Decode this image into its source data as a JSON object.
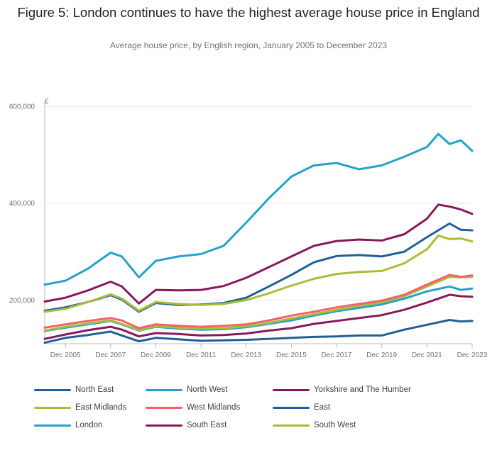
{
  "title": "Figure 5: London continues to have the highest average house price in England",
  "subtitle": "Average house price, by English region, January 2005 to December 2023",
  "chart_data": {
    "type": "line",
    "title": "Figure 5: London continues to have the highest average house price in England",
    "subtitle": "Average house price, by English region, January 2005 to December 2023",
    "y_unit": "£",
    "ylim": [
      110000,
      600000
    ],
    "y_ticks": [
      200000,
      400000,
      600000
    ],
    "y_tick_labels": [
      "200,000",
      "400,000",
      "600,000"
    ],
    "x_ticks": [
      "Dec 2005",
      "Dec 2007",
      "Dec 2009",
      "Dec 2011",
      "Dec 2013",
      "Dec 2015",
      "Dec 2017",
      "Dec 2019",
      "Dec 2021",
      "Dec 2023"
    ],
    "x_range": [
      "Jan 2005",
      "Dec 2023"
    ],
    "grid": "horizontal",
    "legend_position": "bottom",
    "series": [
      {
        "name": "North East",
        "color": "#206095",
        "points": [
          [
            "Jan 2005",
            112000
          ],
          [
            "Dec 2005",
            122000
          ],
          [
            "Dec 2006",
            128000
          ],
          [
            "Dec 2007",
            135000
          ],
          [
            "Jun 2008",
            127000
          ],
          [
            "Mar 2009",
            115000
          ],
          [
            "Dec 2009",
            122000
          ],
          [
            "Dec 2010",
            119000
          ],
          [
            "Dec 2011",
            116000
          ],
          [
            "Dec 2012",
            117000
          ],
          [
            "Dec 2013",
            118000
          ],
          [
            "Dec 2014",
            120000
          ],
          [
            "Dec 2015",
            122000
          ],
          [
            "Dec 2016",
            124000
          ],
          [
            "Dec 2017",
            125000
          ],
          [
            "Dec 2018",
            127000
          ],
          [
            "Dec 2019",
            127000
          ],
          [
            "Dec 2020",
            139000
          ],
          [
            "Dec 2021",
            149000
          ],
          [
            "Dec 2022",
            159000
          ],
          [
            "Jun 2023",
            156000
          ],
          [
            "Dec 2023",
            157000
          ]
        ]
      },
      {
        "name": "North West",
        "color": "#27a0cc",
        "points": [
          [
            "Jan 2005",
            136000
          ],
          [
            "Dec 2005",
            143000
          ],
          [
            "Dec 2006",
            150000
          ],
          [
            "Dec 2007",
            157000
          ],
          [
            "Jun 2008",
            150000
          ],
          [
            "Mar 2009",
            137000
          ],
          [
            "Dec 2009",
            145000
          ],
          [
            "Dec 2010",
            141000
          ],
          [
            "Dec 2011",
            139000
          ],
          [
            "Dec 2012",
            140000
          ],
          [
            "Dec 2013",
            144000
          ],
          [
            "Dec 2014",
            151000
          ],
          [
            "Dec 2015",
            158000
          ],
          [
            "Dec 2016",
            168000
          ],
          [
            "Dec 2017",
            177000
          ],
          [
            "Dec 2018",
            184000
          ],
          [
            "Dec 2019",
            191000
          ],
          [
            "Dec 2020",
            203000
          ],
          [
            "Dec 2021",
            218000
          ],
          [
            "Dec 2022",
            228000
          ],
          [
            "Jun 2023",
            221000
          ],
          [
            "Dec 2023",
            224000
          ]
        ]
      },
      {
        "name": "Yorkshire and The Humber",
        "color": "#871a5b",
        "points": [
          [
            "Jan 2005",
            120000
          ],
          [
            "Dec 2005",
            129000
          ],
          [
            "Dec 2006",
            138000
          ],
          [
            "Dec 2007",
            145000
          ],
          [
            "Jun 2008",
            139000
          ],
          [
            "Mar 2009",
            125000
          ],
          [
            "Dec 2009",
            132000
          ],
          [
            "Dec 2010",
            130000
          ],
          [
            "Dec 2011",
            127000
          ],
          [
            "Dec 2012",
            128000
          ],
          [
            "Dec 2013",
            131000
          ],
          [
            "Dec 2014",
            137000
          ],
          [
            "Dec 2015",
            142000
          ],
          [
            "Dec 2016",
            151000
          ],
          [
            "Dec 2017",
            157000
          ],
          [
            "Dec 2018",
            163000
          ],
          [
            "Dec 2019",
            169000
          ],
          [
            "Dec 2020",
            180000
          ],
          [
            "Dec 2021",
            195000
          ],
          [
            "Dec 2022",
            211000
          ],
          [
            "Jun 2023",
            208000
          ],
          [
            "Dec 2023",
            207000
          ]
        ]
      },
      {
        "name": "East Midlands",
        "color": "#a8bd3a",
        "points": [
          [
            "Jan 2005",
            137000
          ],
          [
            "Dec 2005",
            145000
          ],
          [
            "Dec 2006",
            152000
          ],
          [
            "Dec 2007",
            158000
          ],
          [
            "Jun 2008",
            151000
          ],
          [
            "Mar 2009",
            138000
          ],
          [
            "Dec 2009",
            146000
          ],
          [
            "Dec 2010",
            143000
          ],
          [
            "Dec 2011",
            141000
          ],
          [
            "Dec 2012",
            142000
          ],
          [
            "Dec 2013",
            146000
          ],
          [
            "Dec 2014",
            153000
          ],
          [
            "Dec 2015",
            162000
          ],
          [
            "Dec 2016",
            171000
          ],
          [
            "Dec 2017",
            180000
          ],
          [
            "Dec 2018",
            188000
          ],
          [
            "Dec 2019",
            195000
          ],
          [
            "Dec 2020",
            208000
          ],
          [
            "Dec 2021",
            228000
          ],
          [
            "Dec 2022",
            248000
          ],
          [
            "Jun 2023",
            247000
          ],
          [
            "Dec 2023",
            248000
          ]
        ]
      },
      {
        "name": "West Midlands",
        "color": "#f66068",
        "points": [
          [
            "Jan 2005",
            143000
          ],
          [
            "Dec 2005",
            150000
          ],
          [
            "Dec 2006",
            157000
          ],
          [
            "Dec 2007",
            163000
          ],
          [
            "Jun 2008",
            158000
          ],
          [
            "Mar 2009",
            142000
          ],
          [
            "Dec 2009",
            150000
          ],
          [
            "Dec 2010",
            147000
          ],
          [
            "Dec 2011",
            145000
          ],
          [
            "Dec 2012",
            147000
          ],
          [
            "Dec 2013",
            150000
          ],
          [
            "Dec 2014",
            158000
          ],
          [
            "Dec 2015",
            168000
          ],
          [
            "Dec 2016",
            176000
          ],
          [
            "Dec 2017",
            185000
          ],
          [
            "Dec 2018",
            192000
          ],
          [
            "Dec 2019",
            199000
          ],
          [
            "Dec 2020",
            211000
          ],
          [
            "Dec 2021",
            232000
          ],
          [
            "Dec 2022",
            252000
          ],
          [
            "Jun 2023",
            248000
          ],
          [
            "Dec 2023",
            251000
          ]
        ]
      },
      {
        "name": "East",
        "color": "#206095",
        "points": [
          [
            "Jan 2005",
            178000
          ],
          [
            "Dec 2005",
            185000
          ],
          [
            "Dec 2006",
            196000
          ],
          [
            "Dec 2007",
            210000
          ],
          [
            "Jun 2008",
            201000
          ],
          [
            "Mar 2009",
            176000
          ],
          [
            "Dec 2009",
            194000
          ],
          [
            "Dec 2010",
            190000
          ],
          [
            "Dec 2011",
            191000
          ],
          [
            "Dec 2012",
            194000
          ],
          [
            "Dec 2013",
            205000
          ],
          [
            "Dec 2014",
            228000
          ],
          [
            "Dec 2015",
            252000
          ],
          [
            "Dec 2016",
            278000
          ],
          [
            "Dec 2017",
            291000
          ],
          [
            "Dec 2018",
            293000
          ],
          [
            "Dec 2019",
            290000
          ],
          [
            "Dec 2020",
            300000
          ],
          [
            "Dec 2021",
            330000
          ],
          [
            "Dec 2022",
            358000
          ],
          [
            "Jun 2023",
            345000
          ],
          [
            "Dec 2023",
            344000
          ]
        ]
      },
      {
        "name": "London",
        "color": "#27a0cc",
        "points": [
          [
            "Jan 2005",
            232000
          ],
          [
            "Dec 2005",
            240000
          ],
          [
            "Dec 2006",
            265000
          ],
          [
            "Dec 2007",
            298000
          ],
          [
            "Jun 2008",
            290000
          ],
          [
            "Mar 2009",
            247000
          ],
          [
            "Dec 2009",
            281000
          ],
          [
            "Dec 2010",
            290000
          ],
          [
            "Dec 2011",
            295000
          ],
          [
            "Dec 2012",
            312000
          ],
          [
            "Dec 2013",
            360000
          ],
          [
            "Dec 2014",
            410000
          ],
          [
            "Dec 2015",
            455000
          ],
          [
            "Dec 2016",
            478000
          ],
          [
            "Dec 2017",
            483000
          ],
          [
            "Dec 2018",
            470000
          ],
          [
            "Dec 2019",
            478000
          ],
          [
            "Dec 2020",
            496000
          ],
          [
            "Dec 2021",
            516000
          ],
          [
            "Jun 2022",
            543000
          ],
          [
            "Dec 2022",
            522000
          ],
          [
            "Jun 2023",
            530000
          ],
          [
            "Dec 2023",
            508000
          ]
        ]
      },
      {
        "name": "South East",
        "color": "#871a5b",
        "points": [
          [
            "Jan 2005",
            197000
          ],
          [
            "Dec 2005",
            205000
          ],
          [
            "Dec 2006",
            220000
          ],
          [
            "Dec 2007",
            238000
          ],
          [
            "Jun 2008",
            228000
          ],
          [
            "Mar 2009",
            193000
          ],
          [
            "Dec 2009",
            221000
          ],
          [
            "Dec 2010",
            220000
          ],
          [
            "Dec 2011",
            221000
          ],
          [
            "Dec 2012",
            229000
          ],
          [
            "Dec 2013",
            246000
          ],
          [
            "Dec 2014",
            268000
          ],
          [
            "Dec 2015",
            290000
          ],
          [
            "Dec 2016",
            312000
          ],
          [
            "Dec 2017",
            322000
          ],
          [
            "Dec 2018",
            325000
          ],
          [
            "Dec 2019",
            323000
          ],
          [
            "Dec 2020",
            336000
          ],
          [
            "Dec 2021",
            368000
          ],
          [
            "Jun 2022",
            397000
          ],
          [
            "Dec 2022",
            393000
          ],
          [
            "Jun 2023",
            387000
          ],
          [
            "Dec 2023",
            378000
          ]
        ]
      },
      {
        "name": "South West",
        "color": "#a8bd3a",
        "points": [
          [
            "Jan 2005",
            176000
          ],
          [
            "Dec 2005",
            182000
          ],
          [
            "Dec 2006",
            196000
          ],
          [
            "Dec 2007",
            212000
          ],
          [
            "Jun 2008",
            203000
          ],
          [
            "Mar 2009",
            178000
          ],
          [
            "Dec 2009",
            196000
          ],
          [
            "Dec 2010",
            192000
          ],
          [
            "Dec 2011",
            190000
          ],
          [
            "Dec 2012",
            192000
          ],
          [
            "Dec 2013",
            200000
          ],
          [
            "Dec 2014",
            214000
          ],
          [
            "Dec 2015",
            230000
          ],
          [
            "Dec 2016",
            244000
          ],
          [
            "Dec 2017",
            254000
          ],
          [
            "Dec 2018",
            258000
          ],
          [
            "Dec 2019",
            260000
          ],
          [
            "Dec 2020",
            276000
          ],
          [
            "Dec 2021",
            305000
          ],
          [
            "Jun 2022",
            333000
          ],
          [
            "Dec 2022",
            326000
          ],
          [
            "Jun 2023",
            327000
          ],
          [
            "Dec 2023",
            321000
          ]
        ]
      }
    ]
  }
}
